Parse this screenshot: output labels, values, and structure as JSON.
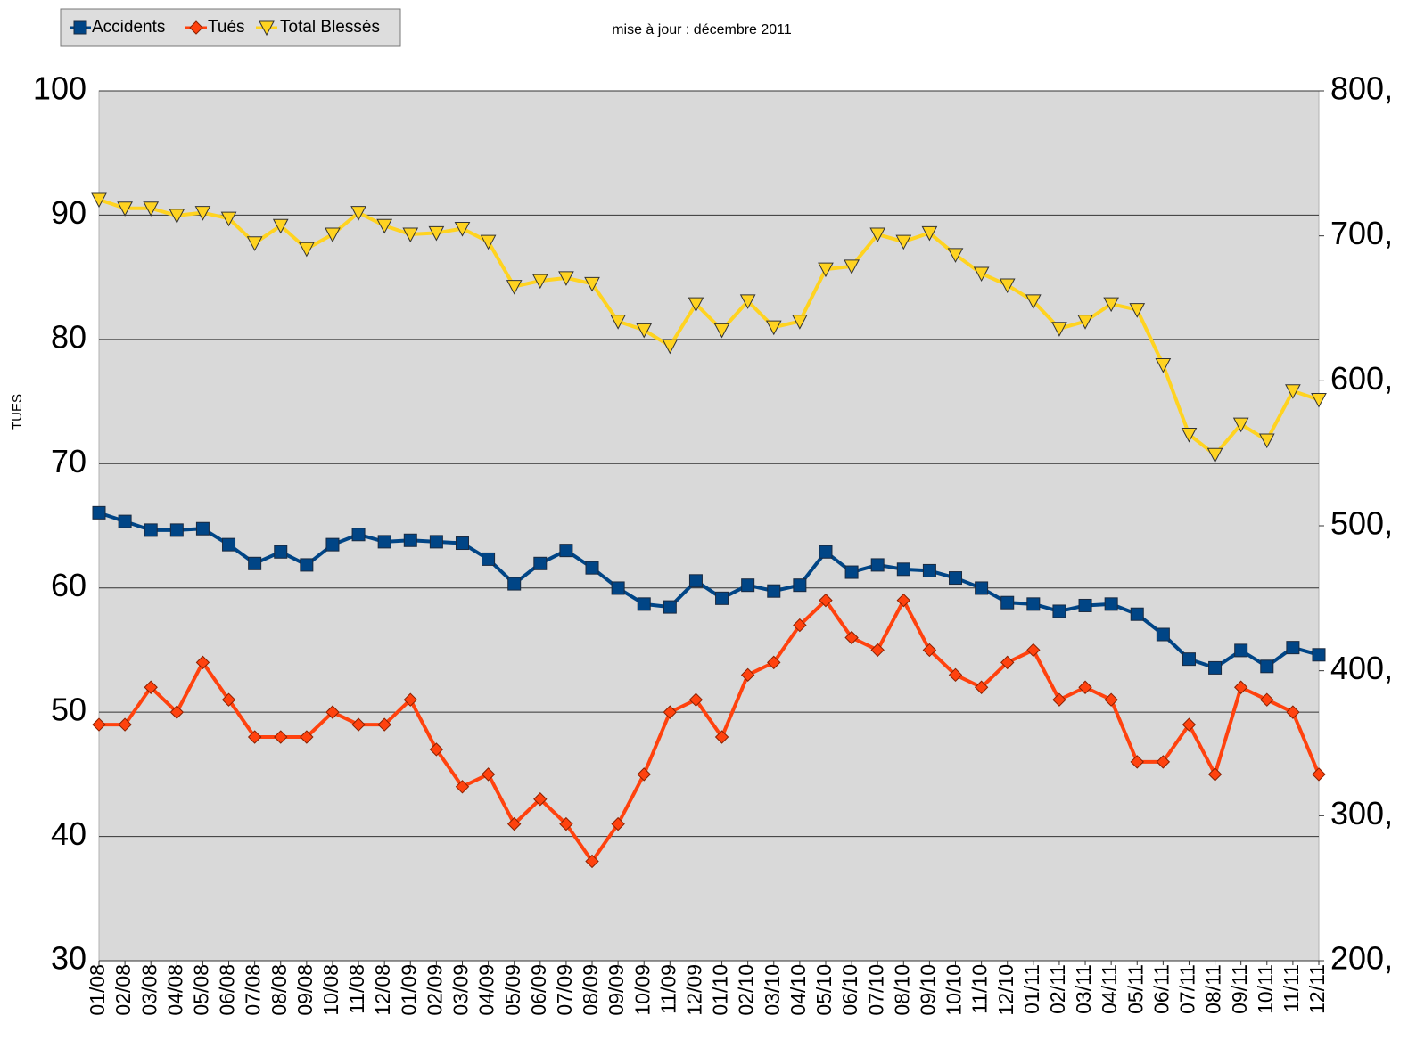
{
  "chart_data": {
    "type": "line",
    "subtitle": "mise à jour : décembre  2011",
    "y_label": "TUES",
    "categories": [
      "01/08",
      "02/08",
      "03/08",
      "04/08",
      "05/08",
      "06/08",
      "07/08",
      "08/08",
      "09/08",
      "10/08",
      "11/08",
      "12/08",
      "01/09",
      "02/09",
      "03/09",
      "04/09",
      "05/09",
      "06/09",
      "07/09",
      "08/09",
      "09/09",
      "10/09",
      "11/09",
      "12/09",
      "01/10",
      "02/10",
      "03/10",
      "04/10",
      "05/10",
      "06/10",
      "07/10",
      "08/10",
      "09/10",
      "10/10",
      "11/10",
      "12/10",
      "01/11",
      "02/11",
      "03/11",
      "04/11",
      "05/11",
      "06/11",
      "07/11",
      "08/11",
      "09/11",
      "10/11",
      "11/11",
      "12/11"
    ],
    "series": [
      {
        "name": "Accidents",
        "color": "#004586",
        "marker": "square",
        "axis": "y2",
        "values": [
          509,
          503,
          497,
          497,
          498,
          487,
          474,
          482,
          473,
          487,
          494,
          489,
          490,
          489,
          488,
          477,
          460,
          474,
          483,
          471,
          457,
          446,
          444,
          462,
          450,
          459,
          455,
          459,
          482,
          468,
          473,
          470,
          469,
          464,
          457,
          447,
          446,
          441,
          445,
          446,
          439,
          425,
          408,
          402,
          414,
          403,
          416,
          411
        ]
      },
      {
        "name": "Tués",
        "color": "#ff420e",
        "marker": "diamond",
        "values": [
          49,
          49,
          52,
          50,
          54,
          51,
          48,
          48,
          48,
          50,
          49,
          49,
          51,
          47,
          44,
          45,
          41,
          43,
          41,
          38,
          41,
          45,
          50,
          51,
          48,
          53,
          54,
          57,
          59,
          56,
          55,
          59,
          55,
          53,
          52,
          54,
          55,
          51,
          52,
          51,
          46,
          46,
          49,
          45,
          52,
          51,
          50,
          45
        ]
      },
      {
        "name": "Total Blessés",
        "color": "#ffd320",
        "marker": "triangle-down",
        "axis": "y2",
        "values": [
          725,
          719,
          719,
          714,
          716,
          712,
          695,
          707,
          691,
          701,
          716,
          707,
          701,
          702,
          705,
          696,
          665,
          669,
          671,
          667,
          641,
          635,
          624,
          653,
          635,
          655,
          637,
          641,
          677,
          679,
          701,
          696,
          702,
          687,
          674,
          666,
          655,
          636,
          641,
          653,
          649,
          611,
          563,
          549,
          570,
          559,
          593,
          587
        ]
      }
    ],
    "ylim": [
      30,
      100
    ],
    "yticks": [
      30,
      40,
      50,
      60,
      70,
      80,
      90,
      100
    ],
    "y2lim": [
      200,
      800
    ],
    "y2ticks": [
      {
        "value": 200,
        "label": "200,"
      },
      {
        "value": 300,
        "label": "300,"
      },
      {
        "value": 400,
        "label": "400,"
      },
      {
        "value": 500,
        "label": "500,"
      },
      {
        "value": 600,
        "label": "600,"
      },
      {
        "value": 700,
        "label": "700,"
      },
      {
        "value": 800,
        "label": "800,"
      }
    ],
    "grid": true,
    "legend": "top-left"
  }
}
